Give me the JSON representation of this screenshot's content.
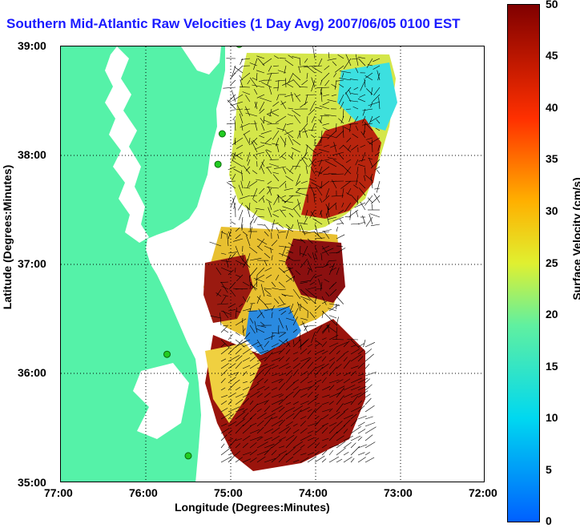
{
  "title": "Southern Mid-Atlantic Raw Velocities (1 Day Avg) 2007/06/05 0100 EST",
  "xlabel": "Longitude (Degrees:Minutes)",
  "ylabel": "Latitude (Degrees:Minutes)",
  "x_ticks": [
    "77:00",
    "76:00",
    "75:00",
    "74:00",
    "73:00",
    "72:00"
  ],
  "y_ticks": [
    "39:00",
    "38:00",
    "37:00",
    "36:00",
    "35:00"
  ],
  "colorbar": {
    "label": "Surface Velocity (cm/s)",
    "ticks": [
      "50",
      "45",
      "40",
      "35",
      "30",
      "25",
      "20",
      "15",
      "10",
      "5",
      "0"
    ],
    "min": 0,
    "max": 50
  },
  "colors": {
    "land": "#55f2a8",
    "title": "#1a1aff",
    "station": "#22cc22"
  },
  "map": {
    "lon_range": [
      -77,
      -72
    ],
    "lat_range": [
      35,
      39
    ],
    "grid": true
  },
  "stations": [
    {
      "lon": -74.9,
      "lat": 39.02
    },
    {
      "lon": -75.1,
      "lat": 38.2
    },
    {
      "lon": -75.15,
      "lat": 37.92
    },
    {
      "lon": -75.75,
      "lat": 36.18
    },
    {
      "lon": -75.5,
      "lat": 35.25
    }
  ]
}
